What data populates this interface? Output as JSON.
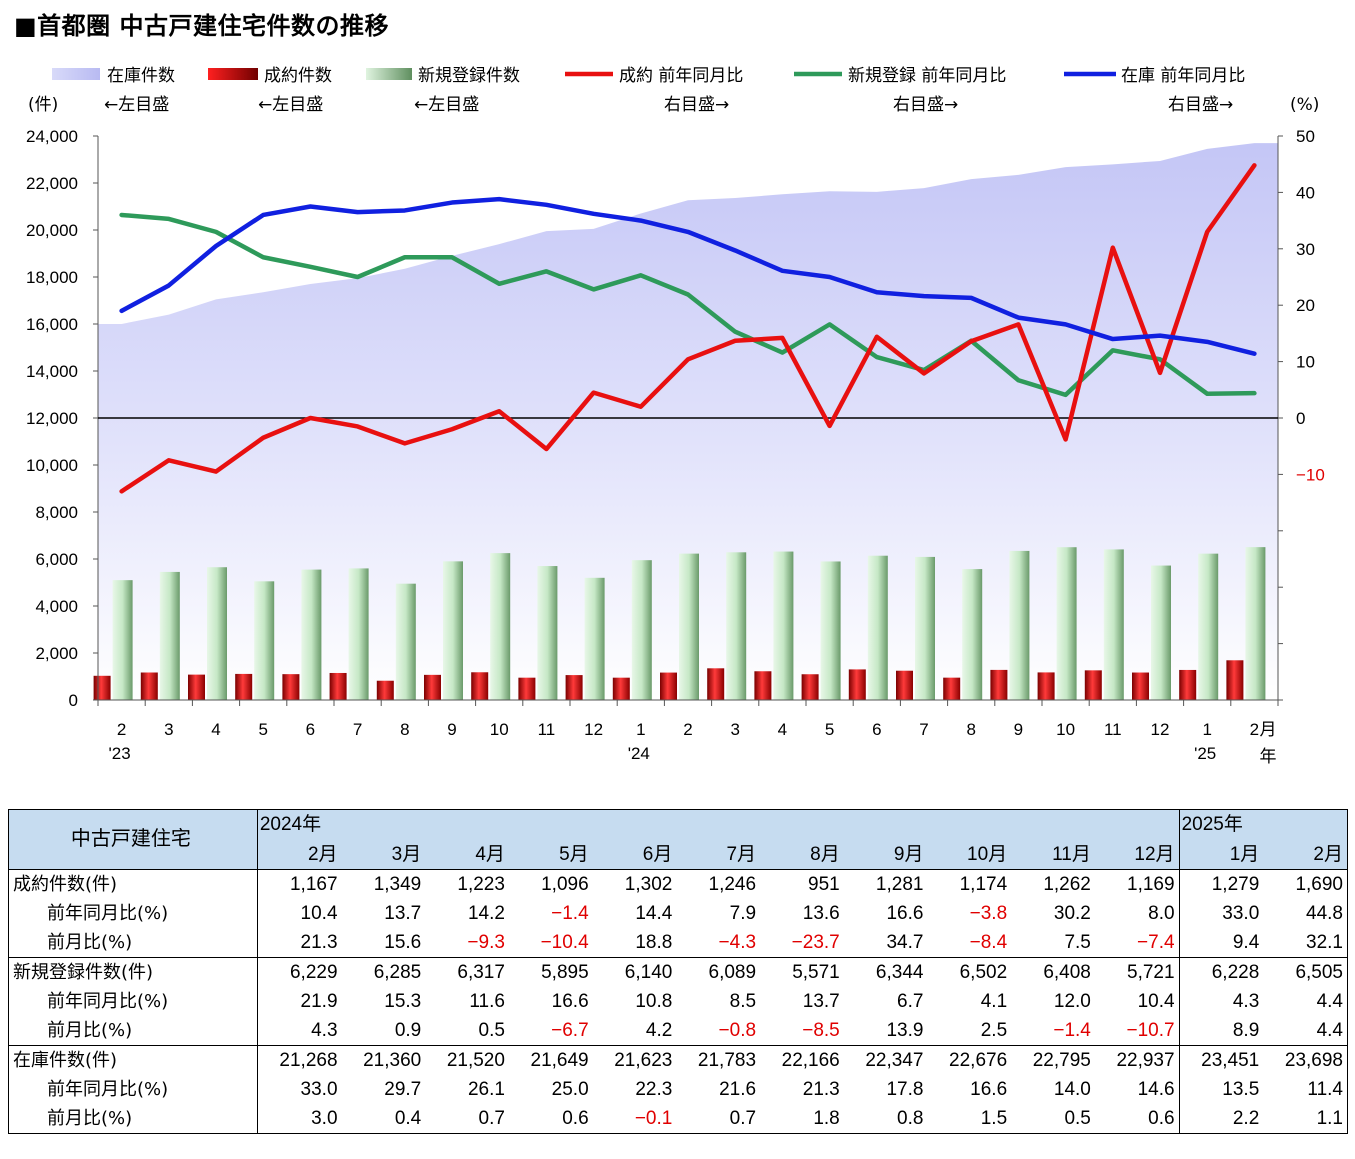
{
  "title": "■首都圏 中古戸建住宅件数の推移",
  "chart_data": {
    "type": "bar+line+area",
    "categories": [
      "2",
      "3",
      "4",
      "5",
      "6",
      "7",
      "8",
      "9",
      "10",
      "11",
      "12",
      "1",
      "2",
      "3",
      "4",
      "5",
      "6",
      "7",
      "8",
      "9",
      "10",
      "11",
      "12",
      "1",
      "2"
    ],
    "year_labels": [
      {
        "index": 0,
        "label": "'23"
      },
      {
        "index": 11,
        "label": "'24"
      },
      {
        "index": 23,
        "label": "'25"
      }
    ],
    "x_unit_month": "月",
    "x_unit_year": "年",
    "left_axis": {
      "unit": "(件)",
      "ylim": [
        0,
        24000
      ],
      "ticks": [
        "24,000",
        "22,000",
        "20,000",
        "18,000",
        "16,000",
        "14,000",
        "12,000",
        "10,000",
        "8,000",
        "6,000",
        "4,000",
        "2,000",
        "0"
      ]
    },
    "right_axis": {
      "unit": "(%)",
      "ylim": [
        -50,
        50
      ],
      "ticks": [
        "50",
        "40",
        "30",
        "20",
        "10",
        "0",
        "−10"
      ],
      "tick_values": [
        50,
        40,
        30,
        20,
        10,
        0,
        -10
      ]
    },
    "legend": [
      {
        "name": "在庫件数",
        "note": "←左目盛",
        "color": "#c8caf8",
        "kind": "area"
      },
      {
        "name": "成約件数",
        "note": "←左目盛",
        "color": "#e00000",
        "kind": "bar"
      },
      {
        "name": "新規登録件数",
        "note": "←左目盛",
        "color": "#8fbf8f",
        "kind": "bar"
      },
      {
        "name": "成約 前年同月比",
        "note": "右目盛→",
        "color": "#e81010",
        "kind": "line"
      },
      {
        "name": "新規登録 前年同月比",
        "note": "右目盛→",
        "color": "#2e9a5a",
        "kind": "line"
      },
      {
        "name": "在庫 前年同月比",
        "note": "右目盛→",
        "color": "#1020e0",
        "kind": "line"
      }
    ],
    "series": {
      "inventory": [
        16000,
        16400,
        17050,
        17350,
        17700,
        17950,
        18350,
        18900,
        19400,
        19950,
        20050,
        20700,
        21268,
        21360,
        21520,
        21649,
        21623,
        21783,
        22166,
        22347,
        22676,
        22795,
        22937,
        23451,
        23698
      ],
      "contracts": [
        1030,
        1170,
        1080,
        1110,
        1100,
        1150,
        820,
        1070,
        1180,
        950,
        1060,
        950,
        1167,
        1349,
        1223,
        1096,
        1302,
        1246,
        951,
        1281,
        1174,
        1262,
        1169,
        1279,
        1690
      ],
      "new_listings": [
        5100,
        5450,
        5650,
        5050,
        5550,
        5600,
        4950,
        5900,
        6250,
        5700,
        5200,
        5950,
        6229,
        6285,
        6317,
        5895,
        6140,
        6089,
        5571,
        6344,
        6502,
        6408,
        5721,
        6228,
        6505
      ],
      "contracts_yoy": [
        -13,
        -7.5,
        -9.5,
        -3.5,
        0,
        -1.5,
        -4.5,
        -2,
        1.2,
        -5.5,
        4.5,
        2,
        10.4,
        13.7,
        14.2,
        -1.4,
        14.4,
        7.9,
        13.6,
        16.6,
        -3.8,
        30.2,
        8.0,
        33.0,
        44.8
      ],
      "new_listings_yoy": [
        36,
        35.3,
        33,
        28.5,
        26.8,
        25,
        28.5,
        28.5,
        23.8,
        26,
        22.8,
        25.3,
        21.9,
        15.3,
        11.6,
        16.6,
        10.8,
        8.5,
        13.7,
        6.7,
        4.1,
        12.0,
        10.4,
        4.3,
        4.4
      ],
      "inventory_yoy": [
        19,
        23.5,
        30.5,
        36,
        37.5,
        36.5,
        36.8,
        38.2,
        38.8,
        37.8,
        36.2,
        35,
        33.0,
        29.7,
        26.1,
        25.0,
        22.3,
        21.6,
        21.3,
        17.8,
        16.6,
        14.0,
        14.6,
        13.5,
        11.4
      ]
    }
  },
  "table": {
    "header_title": "中古戸建住宅",
    "year_2024": "2024年",
    "year_2025": "2025年",
    "months": [
      "2月",
      "3月",
      "4月",
      "5月",
      "6月",
      "7月",
      "8月",
      "9月",
      "10月",
      "11月",
      "12月",
      "1月",
      "2月"
    ],
    "groups": [
      {
        "rows": [
          {
            "label": "成約件数(件)",
            "values": [
              "1,167",
              "1,349",
              "1,223",
              "1,096",
              "1,302",
              "1,246",
              "951",
              "1,281",
              "1,174",
              "1,262",
              "1,169",
              "1,279",
              "1,690"
            ]
          },
          {
            "label": "前年同月比(%)",
            "values": [
              "10.4",
              "13.7",
              "14.2",
              "−1.4",
              "14.4",
              "7.9",
              "13.6",
              "16.6",
              "−3.8",
              "30.2",
              "8.0",
              "33.0",
              "44.8"
            ]
          },
          {
            "label": "前月比(%)",
            "values": [
              "21.3",
              "15.6",
              "−9.3",
              "−10.4",
              "18.8",
              "−4.3",
              "−23.7",
              "34.7",
              "−8.4",
              "7.5",
              "−7.4",
              "9.4",
              "32.1"
            ]
          }
        ]
      },
      {
        "rows": [
          {
            "label": "新規登録件数(件)",
            "values": [
              "6,229",
              "6,285",
              "6,317",
              "5,895",
              "6,140",
              "6,089",
              "5,571",
              "6,344",
              "6,502",
              "6,408",
              "5,721",
              "6,228",
              "6,505"
            ]
          },
          {
            "label": "前年同月比(%)",
            "values": [
              "21.9",
              "15.3",
              "11.6",
              "16.6",
              "10.8",
              "8.5",
              "13.7",
              "6.7",
              "4.1",
              "12.0",
              "10.4",
              "4.3",
              "4.4"
            ]
          },
          {
            "label": "前月比(%)",
            "values": [
              "4.3",
              "0.9",
              "0.5",
              "−6.7",
              "4.2",
              "−0.8",
              "−8.5",
              "13.9",
              "2.5",
              "−1.4",
              "−10.7",
              "8.9",
              "4.4"
            ]
          }
        ]
      },
      {
        "rows": [
          {
            "label": "在庫件数(件)",
            "values": [
              "21,268",
              "21,360",
              "21,520",
              "21,649",
              "21,623",
              "21,783",
              "22,166",
              "22,347",
              "22,676",
              "22,795",
              "22,937",
              "23,451",
              "23,698"
            ]
          },
          {
            "label": "前年同月比(%)",
            "values": [
              "33.0",
              "29.7",
              "26.1",
              "25.0",
              "22.3",
              "21.6",
              "21.3",
              "17.8",
              "16.6",
              "14.0",
              "14.6",
              "13.5",
              "11.4"
            ]
          },
          {
            "label": "前月比(%)",
            "values": [
              "3.0",
              "0.4",
              "0.7",
              "0.6",
              "−0.1",
              "0.7",
              "1.8",
              "0.8",
              "1.5",
              "0.5",
              "0.6",
              "2.2",
              "1.1"
            ]
          }
        ]
      }
    ]
  }
}
